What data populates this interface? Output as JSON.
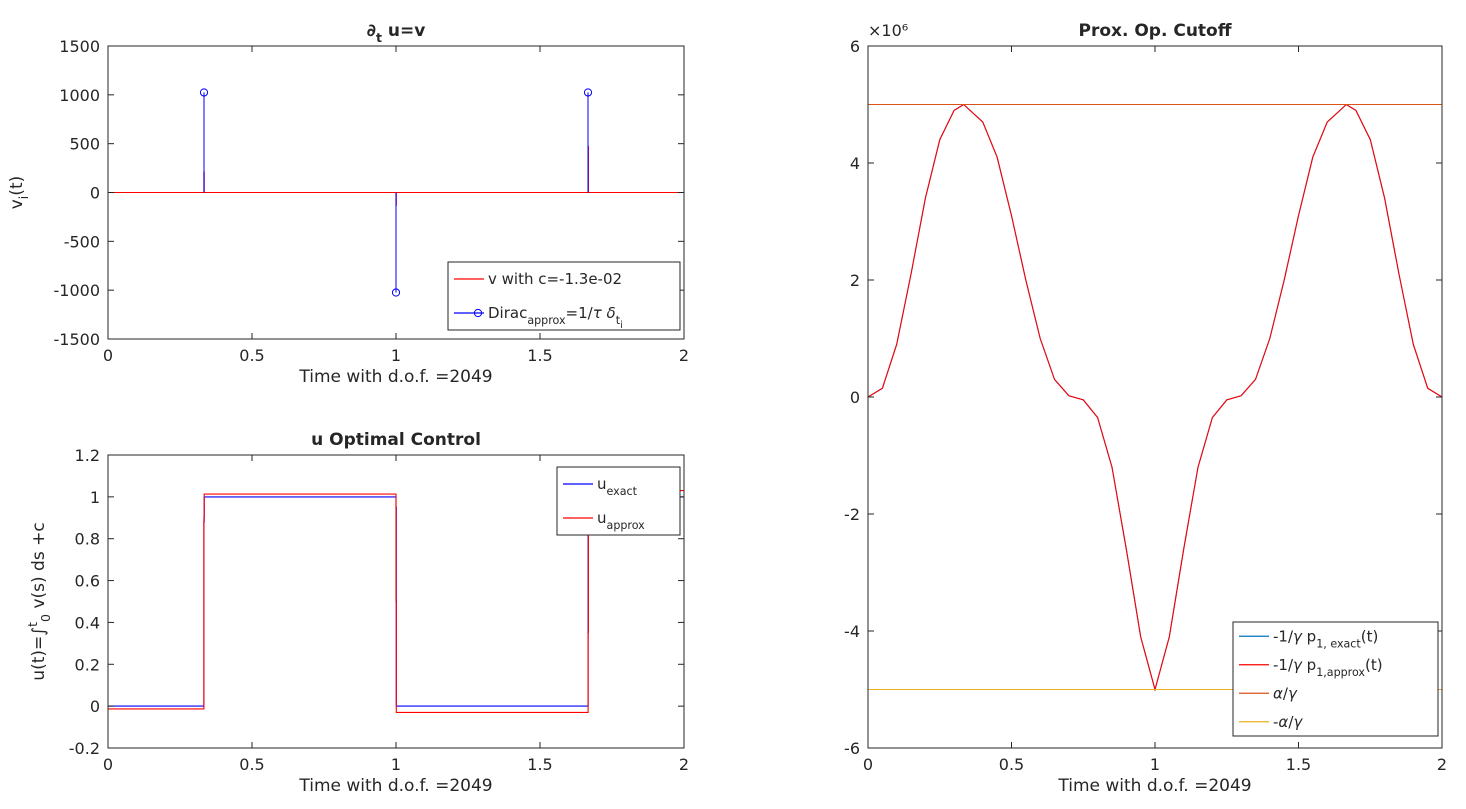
{
  "chart_data": [
    {
      "type": "line",
      "title_parts": [
        {
          "t": "∂"
        },
        {
          "t": "t",
          "sub": true
        },
        {
          "t": " u=v"
        }
      ],
      "xlabel": "Time with d.o.f. =2049",
      "ylabel_parts": [
        {
          "t": "v"
        },
        {
          "t": "i",
          "sub": true
        },
        {
          "t": "(t)"
        }
      ],
      "xlim": [
        0,
        2
      ],
      "ylim": [
        -1500,
        1500
      ],
      "xticks": [
        0,
        0.5,
        1,
        1.5,
        2
      ],
      "xtick_labels": [
        "0",
        "0.5",
        "1",
        "1.5",
        "2"
      ],
      "yticks": [
        -1500,
        -1000,
        -500,
        0,
        500,
        1000,
        1500
      ],
      "ytick_labels": [
        "-1500",
        "-1000",
        "-500",
        "0",
        "500",
        "1000",
        "1500"
      ],
      "grid": false,
      "legend_position": "bottom-right",
      "series": [
        {
          "name_parts": [
            {
              "t": "v with c=-1.3e-02"
            }
          ],
          "color": "#ff0000",
          "style": "line",
          "x": [
            0,
            0.333,
            0.333,
            0.334,
            0.334,
            1.0,
            1.0,
            1.001,
            1.001,
            1.667,
            1.667,
            1.668,
            1.668,
            2
          ],
          "y": [
            0,
            0,
            210,
            210,
            0,
            0,
            -130,
            -130,
            0,
            0,
            470,
            470,
            0,
            0
          ]
        },
        {
          "name_parts": [
            {
              "t": "Dirac"
            },
            {
              "t": "approx",
              "sub": true
            },
            {
              "t": "=1/"
            },
            {
              "t": "τ",
              "it": true
            },
            {
              "t": " "
            },
            {
              "t": "δ",
              "it": true
            },
            {
              "t": "t",
              "sub": true
            },
            {
              "t": "i",
              "subsub": true
            }
          ],
          "color": "#0000ff",
          "style": "stem",
          "x": [
            0.3333,
            1.0,
            1.6667
          ],
          "y": [
            1024,
            -1024,
            1024
          ]
        }
      ]
    },
    {
      "type": "line",
      "title_parts": [
        {
          "t": "u Optimal Control"
        }
      ],
      "xlabel": "Time with d.o.f. =2049",
      "ylabel_parts": [
        {
          "t": "u(t)="
        },
        {
          "t": "∫"
        },
        {
          "t": "t",
          "sup": true
        },
        {
          "t": "0",
          "sub": true
        },
        {
          "t": " v(s) ds +c"
        }
      ],
      "xlim": [
        0,
        2
      ],
      "ylim": [
        -0.2,
        1.2
      ],
      "xticks": [
        0,
        0.5,
        1,
        1.5,
        2
      ],
      "xtick_labels": [
        "0",
        "0.5",
        "1",
        "1.5",
        "2"
      ],
      "yticks": [
        -0.2,
        0,
        0.2,
        0.4,
        0.6,
        0.8,
        1,
        1.2
      ],
      "ytick_labels": [
        "-0.2",
        "0",
        "0.2",
        "0.4",
        "0.6",
        "0.8",
        "1",
        "1.2"
      ],
      "grid": false,
      "legend_position": "top-right",
      "series": [
        {
          "name_parts": [
            {
              "t": "u"
            },
            {
              "t": "exact",
              "sub": true
            }
          ],
          "color": "#0000ff",
          "style": "line",
          "x": [
            0,
            0.333,
            0.333,
            0.334,
            0.334,
            1.0,
            1.0,
            1.001,
            1.001,
            1.667,
            1.667,
            1.668,
            1.668,
            2
          ],
          "y": [
            0,
            0,
            0.88,
            0.88,
            1.0,
            1.0,
            0.95,
            0.95,
            0,
            0,
            0.9,
            0.9,
            1.0,
            1.0
          ]
        },
        {
          "name_parts": [
            {
              "t": "u"
            },
            {
              "t": "approx",
              "sub": true
            }
          ],
          "color": "#ff0000",
          "style": "line",
          "x": [
            0,
            0.333,
            0.333,
            0.334,
            0.334,
            1.0,
            1.0,
            1.001,
            1.001,
            1.667,
            1.667,
            1.668,
            1.668,
            2
          ],
          "y": [
            -0.013,
            -0.013,
            0.9,
            0.9,
            1.013,
            1.013,
            0.5,
            0.5,
            -0.03,
            -0.03,
            0.35,
            0.35,
            1.03,
            1.03
          ]
        }
      ]
    },
    {
      "type": "line",
      "title_parts": [
        {
          "t": "Prox. Op. Cutoff"
        }
      ],
      "xlabel": "Time with d.o.f. =2049",
      "exponent_label": "×10⁶",
      "xlim": [
        0,
        2
      ],
      "ylim": [
        -6,
        6
      ],
      "xticks": [
        0,
        0.5,
        1,
        1.5,
        2
      ],
      "xtick_labels": [
        "0",
        "0.5",
        "1",
        "1.5",
        "2"
      ],
      "yticks": [
        -6,
        -4,
        -2,
        0,
        2,
        4,
        6
      ],
      "ytick_labels": [
        "-6",
        "-4",
        "-2",
        "0",
        "2",
        "4",
        "6"
      ],
      "grid": false,
      "legend_position": "bottom-right",
      "series": [
        {
          "name_parts": [
            {
              "t": "-1/"
            },
            {
              "t": "γ",
              "it": true
            },
            {
              "t": " p"
            },
            {
              "t": "1, exact",
              "sub": true
            },
            {
              "t": "(t)"
            }
          ],
          "color": "#0072bd",
          "style": "line",
          "x": [
            0,
            0.05,
            0.1,
            0.15,
            0.2,
            0.25,
            0.3,
            0.3333,
            0.4,
            0.45,
            0.5,
            0.55,
            0.6,
            0.65,
            0.7,
            0.75,
            0.8,
            0.85,
            0.9,
            0.95,
            1.0,
            1.05,
            1.1,
            1.15,
            1.2,
            1.25,
            1.3,
            1.35,
            1.4,
            1.45,
            1.5,
            1.55,
            1.6,
            1.6667,
            1.7,
            1.75,
            1.8,
            1.85,
            1.9,
            1.95,
            2.0
          ],
          "y": [
            0,
            0.15,
            0.9,
            2.1,
            3.4,
            4.4,
            4.9,
            5.0,
            4.7,
            4.1,
            3.1,
            2.0,
            1.0,
            0.3,
            0.02,
            -0.05,
            -0.35,
            -1.2,
            -2.6,
            -4.1,
            -5.0,
            -4.1,
            -2.6,
            -1.2,
            -0.35,
            -0.05,
            0.02,
            0.3,
            1.0,
            2.0,
            3.1,
            4.1,
            4.7,
            5.0,
            4.9,
            4.4,
            3.4,
            2.1,
            0.9,
            0.15,
            0
          ]
        },
        {
          "name_parts": [
            {
              "t": "-1/"
            },
            {
              "t": "γ",
              "it": true
            },
            {
              "t": " p"
            },
            {
              "t": "1,approx",
              "sub": true
            },
            {
              "t": "(t)"
            }
          ],
          "color": "#ff0000",
          "style": "line",
          "x": [
            0,
            0.05,
            0.1,
            0.15,
            0.2,
            0.25,
            0.3,
            0.3333,
            0.4,
            0.45,
            0.5,
            0.55,
            0.6,
            0.65,
            0.7,
            0.75,
            0.8,
            0.85,
            0.9,
            0.95,
            1.0,
            1.05,
            1.1,
            1.15,
            1.2,
            1.25,
            1.3,
            1.35,
            1.4,
            1.45,
            1.5,
            1.55,
            1.6,
            1.6667,
            1.7,
            1.75,
            1.8,
            1.85,
            1.9,
            1.95,
            2.0
          ],
          "y": [
            0,
            0.15,
            0.9,
            2.1,
            3.4,
            4.4,
            4.9,
            5.0,
            4.7,
            4.1,
            3.1,
            2.0,
            1.0,
            0.3,
            0.02,
            -0.05,
            -0.35,
            -1.2,
            -2.6,
            -4.1,
            -5.0,
            -4.1,
            -2.6,
            -1.2,
            -0.35,
            -0.05,
            0.02,
            0.3,
            1.0,
            2.0,
            3.1,
            4.1,
            4.7,
            5.0,
            4.9,
            4.4,
            3.4,
            2.1,
            0.9,
            0.15,
            0
          ]
        },
        {
          "name_parts": [
            {
              "t": "α",
              "it": true
            },
            {
              "t": "/"
            },
            {
              "t": "γ",
              "it": true
            }
          ],
          "color": "#d95319",
          "style": "line",
          "x": [
            0,
            2
          ],
          "y": [
            5,
            5
          ]
        },
        {
          "name_parts": [
            {
              "t": "-"
            },
            {
              "t": "α",
              "it": true
            },
            {
              "t": "/"
            },
            {
              "t": "γ",
              "it": true
            }
          ],
          "color": "#edb120",
          "style": "line",
          "x": [
            0,
            2
          ],
          "y": [
            -5,
            -5
          ]
        }
      ]
    }
  ]
}
